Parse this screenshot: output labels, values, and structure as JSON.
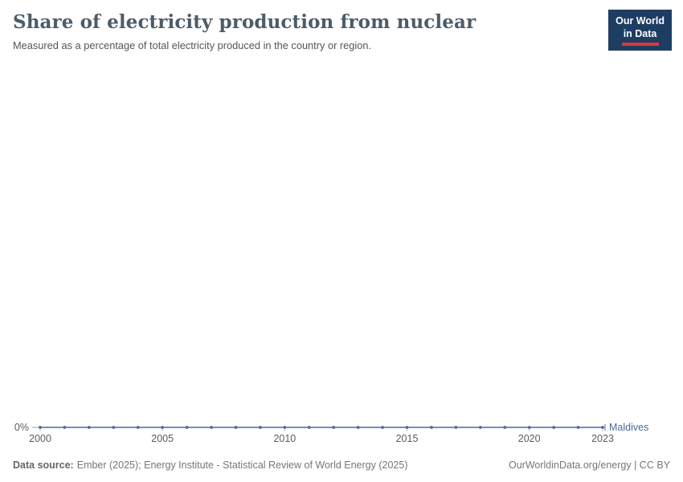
{
  "header": {
    "title": "Share of electricity production from nuclear",
    "subtitle": "Measured as a percentage of total electricity produced in the country or region.",
    "logo": {
      "line1": "Our World",
      "line2": "in Data"
    }
  },
  "chart_data": {
    "type": "line",
    "title": "Share of electricity production from nuclear",
    "subtitle": "Measured as a percentage of total electricity produced in the country or region.",
    "unit": "%",
    "xlim": [
      2000,
      2023
    ],
    "ylim": [
      0,
      0
    ],
    "grid": false,
    "legend_position": "end-of-line",
    "x_ticks": [
      2000,
      2005,
      2010,
      2015,
      2020,
      2023
    ],
    "y_ticks": [
      "0%"
    ],
    "series": [
      {
        "name": "Maldives",
        "color": "#4C6A9C",
        "x": [
          2000,
          2001,
          2002,
          2003,
          2004,
          2005,
          2006,
          2007,
          2008,
          2009,
          2010,
          2011,
          2012,
          2013,
          2014,
          2015,
          2016,
          2017,
          2018,
          2019,
          2020,
          2021,
          2022,
          2023
        ],
        "values": [
          0,
          0,
          0,
          0,
          0,
          0,
          0,
          0,
          0,
          0,
          0,
          0,
          0,
          0,
          0,
          0,
          0,
          0,
          0,
          0,
          0,
          0,
          0,
          0
        ]
      }
    ],
    "colors": {
      "axis_text": "#5b5b5b",
      "axis_line": "#a0a0a0"
    }
  },
  "footer": {
    "source_label": "Data source:",
    "source_text": "Ember (2025); Energy Institute - Statistical Review of World Energy (2025)",
    "right_text": "OurWorldinData.org/energy | CC BY"
  }
}
